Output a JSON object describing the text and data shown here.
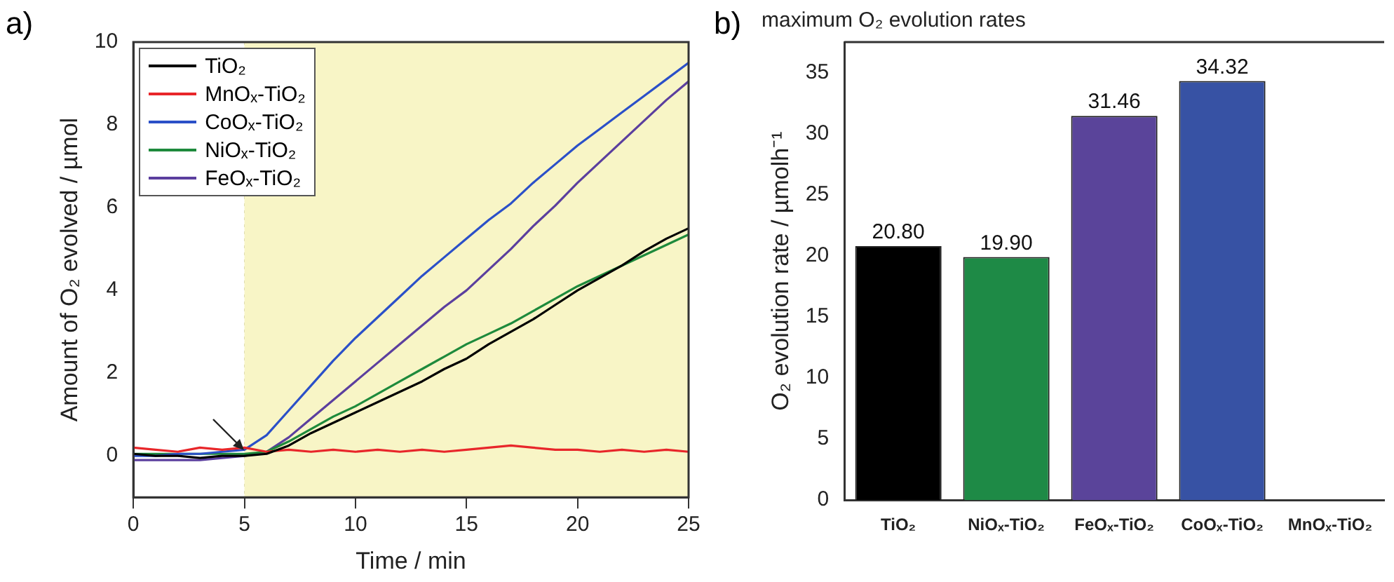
{
  "chart_data": [
    {
      "type": "line",
      "xlabel": "Time / min",
      "ylabel": "Amount of O₂ evolved / µmol",
      "x": [
        0,
        1,
        2,
        3,
        4,
        5,
        6,
        7,
        8,
        9,
        10,
        11,
        12,
        13,
        14,
        15,
        16,
        17,
        18,
        19,
        20,
        21,
        22,
        23,
        24,
        25
      ],
      "series": [
        {
          "name": "TiO₂",
          "color": "#000000",
          "values": [
            0.05,
            0,
            0,
            -0.05,
            0,
            0,
            0.05,
            0.25,
            0.55,
            0.8,
            1.05,
            1.3,
            1.55,
            1.8,
            2.1,
            2.35,
            2.7,
            3.0,
            3.3,
            3.65,
            4.0,
            4.3,
            4.6,
            4.95,
            5.25,
            5.5
          ]
        },
        {
          "name": "MnOₓ-TiO₂",
          "color": "#e8262a",
          "values": [
            0.2,
            0.15,
            0.1,
            0.2,
            0.15,
            0.2,
            0.1,
            0.15,
            0.1,
            0.15,
            0.1,
            0.15,
            0.1,
            0.15,
            0.1,
            0.15,
            0.2,
            0.25,
            0.2,
            0.15,
            0.15,
            0.1,
            0.15,
            0.1,
            0.15,
            0.1
          ]
        },
        {
          "name": "CoOₓ-TiO₂",
          "color": "#2b50c8",
          "values": [
            0,
            0,
            0.05,
            0.05,
            0.1,
            0.15,
            0.5,
            1.1,
            1.7,
            2.3,
            2.85,
            3.35,
            3.85,
            4.35,
            4.8,
            5.25,
            5.7,
            6.1,
            6.6,
            7.05,
            7.5,
            7.9,
            8.3,
            8.7,
            9.1,
            9.5
          ]
        },
        {
          "name": "NiOₓ-TiO₂",
          "color": "#1e8a3c",
          "values": [
            0.05,
            0.05,
            0.05,
            0.05,
            0.05,
            0.05,
            0.1,
            0.35,
            0.65,
            0.95,
            1.2,
            1.5,
            1.8,
            2.1,
            2.4,
            2.7,
            2.95,
            3.2,
            3.5,
            3.8,
            4.1,
            4.35,
            4.6,
            4.85,
            5.1,
            5.35
          ]
        },
        {
          "name": "FeOₓ-TiO₂",
          "color": "#5b3f9e",
          "values": [
            -0.1,
            -0.1,
            -0.1,
            -0.1,
            -0.05,
            0,
            0.1,
            0.45,
            0.9,
            1.35,
            1.8,
            2.25,
            2.7,
            3.15,
            3.6,
            4.0,
            4.5,
            5.0,
            5.55,
            6.05,
            6.6,
            7.1,
            7.6,
            8.1,
            8.6,
            9.05
          ]
        }
      ],
      "xlim": [
        0,
        25
      ],
      "xticks": [
        0,
        5,
        10,
        15,
        20,
        25
      ],
      "ylim": [
        -1,
        10
      ],
      "yticks": [
        0,
        2,
        4,
        6,
        8,
        10
      ],
      "bands": [
        {
          "axis": "x",
          "from": 5,
          "to": 25,
          "color": "#f8f5c6"
        }
      ],
      "grid": "x",
      "legend": "top left",
      "line_style": "solid",
      "marker": "none",
      "annotations": [
        "a)"
      ]
    },
    {
      "type": "bar",
      "title": "maximum O₂ evolution rates",
      "ylabel": "O₂ evolution rate / µmolh⁻¹",
      "categories": [
        "TiO₂",
        "NiOₓ-TiO₂",
        "FeOₓ-TiO₂",
        "CoOₓ-TiO₂",
        "MnOₓ-TiO₂"
      ],
      "values": [
        20.8,
        19.9,
        31.46,
        34.32,
        null
      ],
      "colors": [
        "#000000",
        "#1e8a46",
        "#5a449a",
        "#3752a4",
        "#888888"
      ],
      "value_labels": [
        "20.80",
        "19.90",
        "31.46",
        "34.32",
        null
      ],
      "ylim": [
        0,
        37.5
      ],
      "yticks": [
        0,
        5,
        10,
        15,
        20,
        25,
        30,
        35
      ],
      "grid": false,
      "legend": false,
      "annotations": [
        "b)"
      ]
    }
  ]
}
